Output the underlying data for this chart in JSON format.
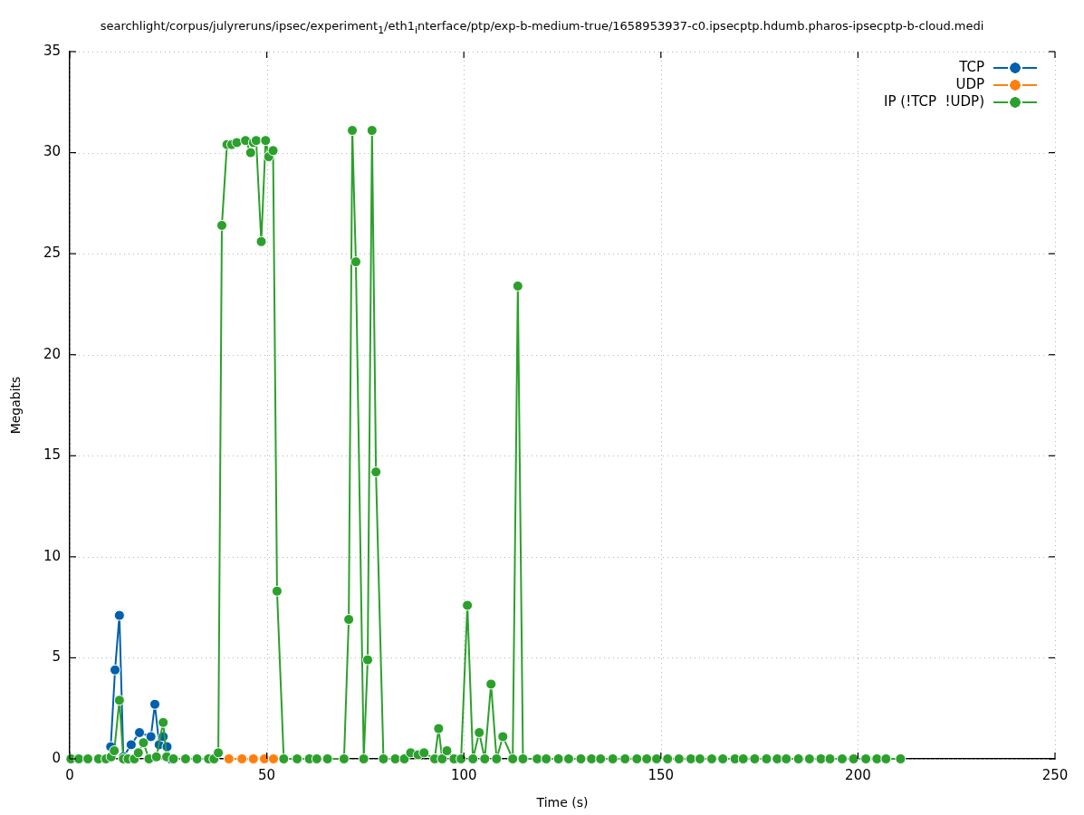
{
  "chart_data": {
    "type": "line",
    "title": "searchlight/corpus/julyreruns/ipsec/experiment$_{1}$/eth1$_{i}$nterface/ptp/exp-b-medium-true/1658953937-c0.ipsecptp.hdumb.pharos-ipsecptp-b-cloud.medi",
    "xlabel": "Time (s)",
    "ylabel": "Megabits",
    "xlim": [
      0,
      250
    ],
    "xticks": [
      0,
      50,
      100,
      150,
      200,
      250
    ],
    "ylim": [
      0,
      35
    ],
    "yticks": [
      0,
      5,
      10,
      15,
      20,
      25,
      30,
      35
    ],
    "grid": true,
    "legend": "top right",
    "marker": "circle",
    "series": [
      {
        "name": "TCP",
        "color": "#0060ad",
        "x": [
          10.4,
          11.5,
          12.6,
          13.6,
          15.6,
          17.7,
          20.6,
          21.6,
          22.7,
          23.7,
          24.7,
          25.6
        ],
        "values": [
          0.6,
          4.4,
          7.1,
          0.1,
          0.7,
          1.3,
          1.1,
          2.7,
          0.7,
          1.1,
          0.6,
          0
        ]
      },
      {
        "name": "UDP",
        "color": "#ff7f0e",
        "x": [
          40.4,
          43.7,
          46.6,
          49.4,
          51.7
        ],
        "values": [
          0,
          0,
          0,
          0,
          0
        ]
      },
      {
        "name": "IP (!TCP  !UDP)",
        "color": "#2ca02c",
        "x": [
          0.3,
          2.3,
          4.6,
          7.3,
          9.2,
          10.5,
          11.3,
          12.6,
          13.6,
          14.8,
          16.4,
          17.4,
          18.7,
          20.1,
          22.0,
          23.7,
          24.6,
          26.3,
          29.4,
          32.3,
          35.2,
          36.6,
          37.7,
          38.6,
          39.9,
          41.1,
          42.4,
          44.6,
          45.9,
          46.6,
          47.3,
          48.6,
          49.7,
          50.5,
          51.6,
          52.6,
          54.3,
          57.7,
          60.8,
          62.7,
          65.4,
          69.6,
          70.8,
          71.7,
          72.6,
          74.6,
          75.6,
          76.7,
          77.7,
          79.6,
          82.6,
          84.9,
          86.5,
          88.4,
          89.9,
          92.6,
          93.6,
          94.5,
          95.7,
          97.5,
          99.3,
          100.9,
          102.3,
          103.9,
          105.3,
          106.9,
          108.3,
          109.9,
          112.4,
          113.7,
          115.0,
          118.6,
          120.9,
          124.0,
          126.6,
          129.7,
          132.4,
          134.7,
          137.8,
          140.9,
          143.9,
          146.4,
          148.9,
          151.7,
          154.6,
          157.6,
          159.9,
          162.9,
          165.7,
          168.8,
          170.9,
          173.8,
          176.8,
          179.5,
          181.8,
          184.9,
          187.7,
          190.6,
          192.9,
          196.0,
          198.9,
          202.0,
          204.8,
          207.1,
          210.8
        ],
        "values": [
          0,
          0,
          0,
          0,
          0,
          0.1,
          0.4,
          2.9,
          0,
          0,
          0,
          0.3,
          0.8,
          0,
          0.1,
          1.8,
          0.1,
          0,
          0,
          0,
          0,
          0,
          0.3,
          26.4,
          30.4,
          30.4,
          30.5,
          30.6,
          30.0,
          30.5,
          30.6,
          25.6,
          30.6,
          29.8,
          30.1,
          8.3,
          0,
          0,
          0,
          0,
          0,
          0,
          6.9,
          31.1,
          24.6,
          0,
          4.9,
          31.1,
          14.2,
          0,
          0,
          0,
          0.3,
          0.2,
          0.3,
          0,
          1.5,
          0,
          0.4,
          0,
          0,
          7.6,
          0,
          1.3,
          0,
          3.7,
          0,
          1.1,
          0,
          23.4,
          0,
          0,
          0,
          0,
          0,
          0,
          0,
          0,
          0,
          0,
          0,
          0,
          0,
          0,
          0,
          0,
          0,
          0,
          0,
          0,
          0,
          0,
          0,
          0,
          0,
          0,
          0,
          0,
          0,
          0,
          0,
          0,
          0,
          0,
          0
        ]
      }
    ]
  }
}
